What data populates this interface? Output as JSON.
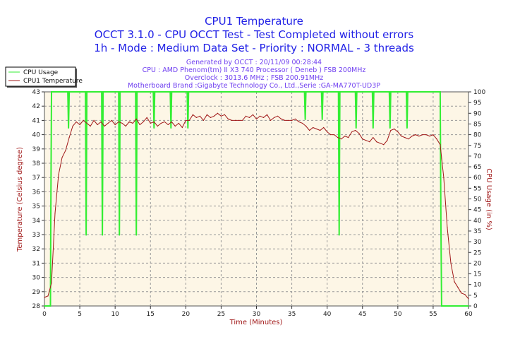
{
  "titles": [
    "CPU1 Temperature",
    "OCCT 3.1.0 - CPU OCCT Test - Test Completed without errors",
    "1h - Mode : Medium Data Set - Priority : NORMAL - 3 threads"
  ],
  "info": [
    "Generated by OCCT : 20/11/09 00:28:44",
    "CPU : AMD Phenom(tm) II X3 740 Processor ( Deneb ) FSB 200MHz",
    "Overclock : 3013.6 MHz ; FSB 200.91MHz",
    "Motherboard Brand :Gigabyte Technology Co., Ltd.,Serie :GA-MA770T-UD3P"
  ],
  "colors": {
    "temperature": "#a01818",
    "usage": "#33ee33",
    "plot_bg": "#fdf6e6",
    "title": "#2222e6",
    "info": "#7040f0"
  },
  "chart_data": {
    "type": "line",
    "xlabel": "Time (Minutes)",
    "ylabel": "Temperature (Celsius degree)",
    "y2label": "CPU Usage (in %)",
    "xlim": [
      0,
      60
    ],
    "ylim": [
      28,
      43
    ],
    "y2lim": [
      0,
      100
    ],
    "xticks": [
      0,
      5,
      10,
      15,
      20,
      25,
      30,
      35,
      40,
      45,
      50,
      55,
      60
    ],
    "yticks": [
      28,
      29,
      30,
      31,
      32,
      33,
      34,
      35,
      36,
      37,
      38,
      39,
      40,
      41,
      42,
      43
    ],
    "y2ticks": [
      0,
      5,
      10,
      15,
      20,
      25,
      30,
      35,
      40,
      45,
      50,
      55,
      60,
      65,
      70,
      75,
      80,
      85,
      90,
      95,
      100
    ],
    "grid": true,
    "legend_position": "top-left",
    "series": [
      {
        "name": "CPU Usage",
        "axis": "right",
        "points": [
          [
            0,
            0
          ],
          [
            0.85,
            0
          ],
          [
            0.9,
            40
          ],
          [
            1.0,
            100
          ],
          [
            3.3,
            100
          ],
          [
            3.4,
            83
          ],
          [
            3.5,
            100
          ],
          [
            5.8,
            100
          ],
          [
            5.9,
            33
          ],
          [
            6.0,
            100
          ],
          [
            8.1,
            100
          ],
          [
            8.2,
            33
          ],
          [
            8.3,
            100
          ],
          [
            10.5,
            100
          ],
          [
            10.6,
            33
          ],
          [
            10.7,
            100
          ],
          [
            12.9,
            100
          ],
          [
            13.0,
            33
          ],
          [
            13.1,
            100
          ],
          [
            15.4,
            100
          ],
          [
            15.5,
            83
          ],
          [
            15.6,
            100
          ],
          [
            17.8,
            100
          ],
          [
            17.9,
            83
          ],
          [
            18.0,
            100
          ],
          [
            20.2,
            100
          ],
          [
            20.3,
            83
          ],
          [
            20.4,
            100
          ],
          [
            36.8,
            100
          ],
          [
            36.9,
            87
          ],
          [
            37.0,
            100
          ],
          [
            39.2,
            100
          ],
          [
            39.3,
            87
          ],
          [
            39.4,
            100
          ],
          [
            41.6,
            100
          ],
          [
            41.7,
            33
          ],
          [
            41.8,
            100
          ],
          [
            44.0,
            100
          ],
          [
            44.1,
            83
          ],
          [
            44.2,
            100
          ],
          [
            46.4,
            100
          ],
          [
            46.5,
            83
          ],
          [
            46.6,
            100
          ],
          [
            48.8,
            100
          ],
          [
            48.9,
            83
          ],
          [
            49.0,
            100
          ],
          [
            51.2,
            100
          ],
          [
            51.3,
            83
          ],
          [
            51.4,
            100
          ],
          [
            56.0,
            100
          ],
          [
            56.1,
            40
          ],
          [
            56.2,
            0
          ],
          [
            60,
            0
          ]
        ]
      },
      {
        "name": "CPU1 Temperature",
        "axis": "left",
        "x_start": 0,
        "x_step": 0.5,
        "values": [
          28.6,
          28.7,
          29.6,
          34.5,
          37.2,
          38.4,
          38.9,
          39.8,
          40.6,
          40.9,
          40.7,
          41.0,
          40.8,
          40.6,
          41.0,
          40.7,
          40.9,
          40.6,
          40.8,
          41.0,
          40.7,
          40.9,
          40.8,
          40.6,
          40.9,
          40.8,
          41.1,
          40.7,
          40.9,
          41.2,
          40.8,
          40.9,
          40.6,
          40.8,
          40.9,
          40.7,
          40.9,
          40.6,
          40.8,
          40.5,
          41.0,
          41.0,
          41.4,
          41.2,
          41.3,
          41.0,
          41.4,
          41.2,
          41.3,
          41.5,
          41.3,
          41.4,
          41.1,
          41.0,
          41.0,
          41.0,
          41.0,
          41.3,
          41.2,
          41.4,
          41.1,
          41.3,
          41.2,
          41.4,
          41.0,
          41.2,
          41.3,
          41.1,
          41.0,
          41.0,
          41.0,
          41.1,
          40.9,
          40.8,
          40.6,
          40.3,
          40.5,
          40.4,
          40.3,
          40.5,
          40.2,
          40.0,
          40.0,
          39.8,
          39.7,
          39.9,
          39.8,
          40.2,
          40.3,
          40.1,
          39.7,
          39.6,
          39.5,
          39.8,
          39.5,
          39.4,
          39.3,
          39.6,
          40.3,
          40.4,
          40.2,
          39.9,
          39.8,
          39.7,
          39.9,
          40.0,
          39.9,
          40.0,
          40.0,
          39.9,
          40.0,
          39.7,
          39.3,
          37.0,
          33.5,
          31.0,
          29.7,
          29.3,
          28.9,
          28.8,
          28.5
        ]
      }
    ]
  }
}
